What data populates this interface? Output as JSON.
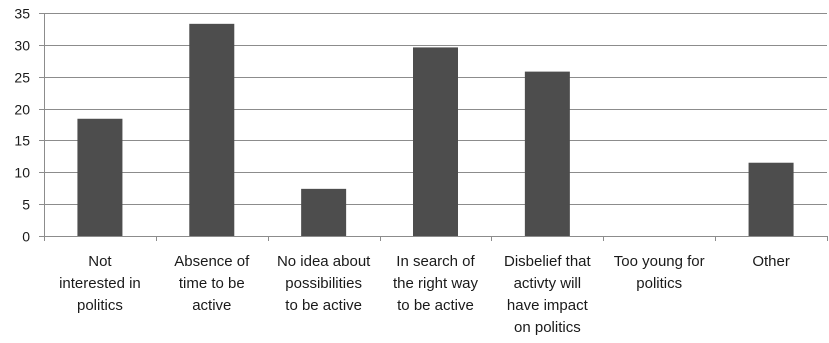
{
  "chart_data": {
    "type": "bar",
    "categories": [
      [
        "Not",
        "interested in",
        "politics"
      ],
      [
        "Absence of",
        "time to be",
        "active"
      ],
      [
        "No idea about",
        "possibilities",
        "to be active"
      ],
      [
        "In search of",
        "the right way",
        "to be active"
      ],
      [
        "Disbelief that",
        "activty will",
        "have impact",
        "on politics"
      ],
      [
        "Too young for",
        "politics"
      ],
      [
        "Other"
      ]
    ],
    "values": [
      18.4,
      33.3,
      7.4,
      29.6,
      25.8,
      0,
      11.5
    ],
    "ylim": [
      0,
      35
    ],
    "yticks": [
      0,
      5,
      10,
      15,
      20,
      25,
      30,
      35
    ],
    "grid": true,
    "bar_color": "#4d4d4d",
    "grid_color": "#8c8c8c",
    "title": "",
    "xlabel": "",
    "ylabel": ""
  }
}
